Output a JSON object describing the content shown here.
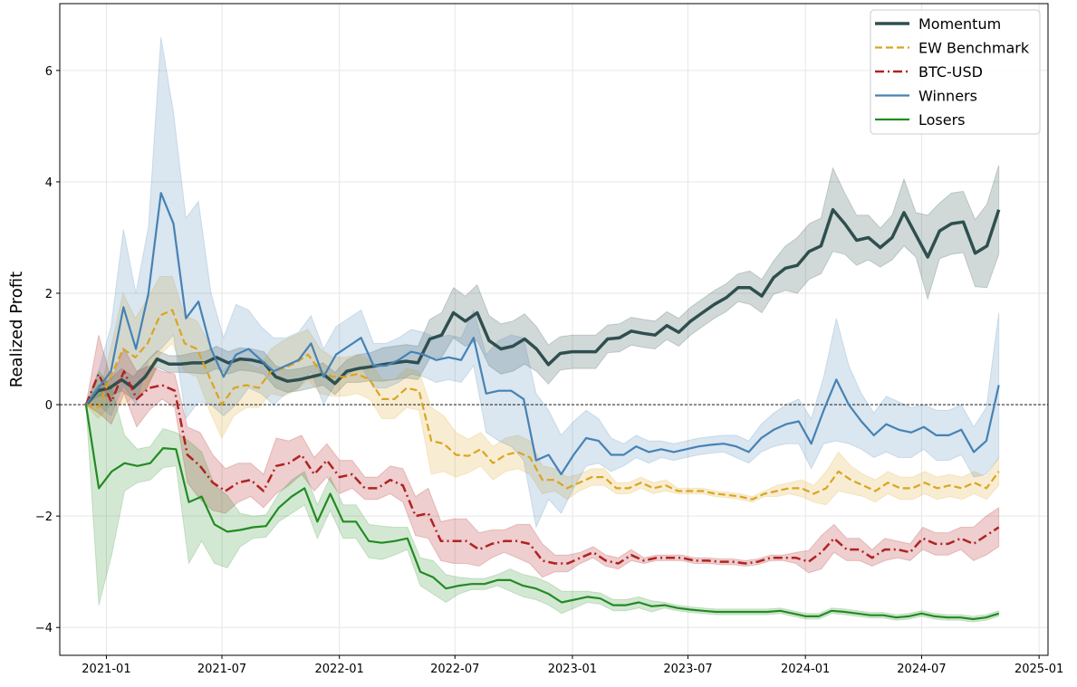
{
  "chart_data": {
    "type": "line",
    "title": "",
    "xlabel": "",
    "ylabel": "Realized Profit",
    "xlim": [
      "2020-10-20",
      "2025-01-15"
    ],
    "ylim": [
      -4.5,
      7.2
    ],
    "grid": true,
    "legend_position": "top-right",
    "x_tick_labels": [
      "2021-01",
      "2021-07",
      "2022-01",
      "2022-07",
      "2023-01",
      "2023-07",
      "2024-01",
      "2024-07",
      "2025-01"
    ],
    "y_tick_values": [
      -4,
      -2,
      0,
      2,
      4,
      6
    ],
    "y_tick_labels": [
      "−4",
      "−2",
      "0",
      "2",
      "4",
      "6"
    ],
    "reference_line": {
      "y": 0,
      "style": "dashed",
      "color": "#000000"
    },
    "x_start": "2020-11-30",
    "x_step_days": 14.12,
    "series": [
      {
        "name": "Momentum",
        "color": "#2f4f4f",
        "style": "solid",
        "width": 3.5,
        "band_opacity": 0.22,
        "values": [
          0,
          0.25,
          0.3,
          0.45,
          0.3,
          0.5,
          0.82,
          0.73,
          0.73,
          0.75,
          0.75,
          0.85,
          0.75,
          0.82,
          0.8,
          0.75,
          0.5,
          0.42,
          0.45,
          0.5,
          0.55,
          0.38,
          0.6,
          0.65,
          0.68,
          0.72,
          0.75,
          0.78,
          0.75,
          1.18,
          1.25,
          1.65,
          1.5,
          1.65,
          1.15,
          1.0,
          1.05,
          1.18,
          1.0,
          0.72,
          0.92,
          0.95,
          0.95,
          0.95,
          1.18,
          1.2,
          1.32,
          1.28,
          1.25,
          1.42,
          1.3,
          1.5,
          1.65,
          1.8,
          1.92,
          2.1,
          2.1,
          1.95,
          2.28,
          2.45,
          2.5,
          2.75,
          2.85,
          3.5,
          3.25,
          2.95,
          3.0,
          2.82,
          3.0,
          3.45,
          3.05,
          2.65,
          3.12,
          3.25,
          3.28,
          2.72,
          2.85,
          3.5
        ],
        "band_width": [
          0,
          0.1,
          0.15,
          0.2,
          0.2,
          0.25,
          0.15,
          0.15,
          0.15,
          0.18,
          0.2,
          0.2,
          0.2,
          0.2,
          0.2,
          0.2,
          0.2,
          0.2,
          0.2,
          0.2,
          0.2,
          0.2,
          0.2,
          0.25,
          0.25,
          0.3,
          0.3,
          0.3,
          0.3,
          0.35,
          0.4,
          0.45,
          0.45,
          0.5,
          0.45,
          0.45,
          0.45,
          0.45,
          0.4,
          0.35,
          0.3,
          0.3,
          0.3,
          0.3,
          0.25,
          0.25,
          0.25,
          0.25,
          0.25,
          0.25,
          0.25,
          0.25,
          0.25,
          0.25,
          0.25,
          0.25,
          0.3,
          0.3,
          0.3,
          0.4,
          0.5,
          0.5,
          0.5,
          0.75,
          0.55,
          0.45,
          0.4,
          0.35,
          0.4,
          0.6,
          0.4,
          0.75,
          0.5,
          0.55,
          0.55,
          0.6,
          0.75,
          0.8
        ]
      },
      {
        "name": "EW Benchmark",
        "color": "#daa520",
        "style": "dashed",
        "width": 2.2,
        "band_opacity": 0.2,
        "values": [
          0,
          -0.05,
          0.5,
          1.0,
          0.85,
          1.1,
          1.6,
          1.7,
          1.1,
          1.0,
          0.5,
          0.0,
          0.3,
          0.35,
          0.3,
          0.6,
          0.65,
          0.75,
          0.9,
          0.6,
          0.5,
          0.5,
          0.55,
          0.45,
          0.1,
          0.1,
          0.3,
          0.25,
          -0.65,
          -0.7,
          -0.9,
          -0.92,
          -0.8,
          -1.05,
          -0.9,
          -0.85,
          -0.95,
          -1.35,
          -1.35,
          -1.5,
          -1.4,
          -1.3,
          -1.3,
          -1.5,
          -1.5,
          -1.4,
          -1.5,
          -1.45,
          -1.55,
          -1.55,
          -1.55,
          -1.6,
          -1.62,
          -1.65,
          -1.7,
          -1.6,
          -1.55,
          -1.5,
          -1.5,
          -1.6,
          -1.5,
          -1.2,
          -1.35,
          -1.45,
          -1.55,
          -1.4,
          -1.5,
          -1.5,
          -1.4,
          -1.5,
          -1.45,
          -1.5,
          -1.4,
          -1.5,
          -1.2
        ],
        "band_width": [
          0,
          0.2,
          0.5,
          1.0,
          0.7,
          0.8,
          0.7,
          0.6,
          0.5,
          0.5,
          0.6,
          0.6,
          0.5,
          0.4,
          0.35,
          0.4,
          0.5,
          0.5,
          0.45,
          0.4,
          0.35,
          0.35,
          0.35,
          0.35,
          0.35,
          0.35,
          0.35,
          0.35,
          0.6,
          0.5,
          0.4,
          0.3,
          0.3,
          0.3,
          0.3,
          0.3,
          0.3,
          0.25,
          0.2,
          0.2,
          0.15,
          0.15,
          0.15,
          0.1,
          0.1,
          0.1,
          0.1,
          0.1,
          0.05,
          0.05,
          0.05,
          0.05,
          0.05,
          0.05,
          0.05,
          0.05,
          0.1,
          0.1,
          0.15,
          0.15,
          0.3,
          0.35,
          0.25,
          0.2,
          0.2,
          0.2,
          0.2,
          0.2,
          0.2,
          0.2,
          0.2,
          0.2,
          0.2,
          0.2,
          0.25
        ]
      },
      {
        "name": "BTC-USD",
        "color": "#b22222",
        "style": "dashdot",
        "width": 2.5,
        "band_opacity": 0.22,
        "values": [
          0,
          0.55,
          0.05,
          0.6,
          0.1,
          0.3,
          0.35,
          0.25,
          -0.9,
          -1.1,
          -1.4,
          -1.55,
          -1.4,
          -1.35,
          -1.55,
          -1.1,
          -1.05,
          -0.9,
          -1.25,
          -1.0,
          -1.3,
          -1.25,
          -1.5,
          -1.5,
          -1.35,
          -1.45,
          -2.0,
          -1.95,
          -2.45,
          -2.45,
          -2.45,
          -2.6,
          -2.5,
          -2.45,
          -2.45,
          -2.5,
          -2.8,
          -2.85,
          -2.85,
          -2.75,
          -2.65,
          -2.8,
          -2.85,
          -2.7,
          -2.8,
          -2.75,
          -2.75,
          -2.75,
          -2.8,
          -2.8,
          -2.82,
          -2.82,
          -2.85,
          -2.82,
          -2.75,
          -2.75,
          -2.75,
          -2.82,
          -2.65,
          -2.4,
          -2.6,
          -2.6,
          -2.75,
          -2.6,
          -2.6,
          -2.65,
          -2.4,
          -2.5,
          -2.5,
          -2.4,
          -2.5,
          -2.35,
          -2.2
        ],
        "band_width": [
          0,
          0.7,
          0.4,
          0.4,
          0.5,
          0.4,
          0.25,
          0.3,
          0.5,
          0.6,
          0.5,
          0.4,
          0.35,
          0.3,
          0.3,
          0.5,
          0.4,
          0.35,
          0.3,
          0.3,
          0.3,
          0.25,
          0.2,
          0.2,
          0.25,
          0.3,
          0.35,
          0.45,
          0.35,
          0.4,
          0.4,
          0.3,
          0.25,
          0.2,
          0.3,
          0.35,
          0.3,
          0.15,
          0.15,
          0.1,
          0.1,
          0.1,
          0.1,
          0.1,
          0.05,
          0.05,
          0.05,
          0.05,
          0.05,
          0.05,
          0.05,
          0.05,
          0.05,
          0.05,
          0.05,
          0.05,
          0.1,
          0.2,
          0.3,
          0.25,
          0.2,
          0.2,
          0.15,
          0.2,
          0.15,
          0.15,
          0.2,
          0.2,
          0.2,
          0.2,
          0.3,
          0.35,
          0.35
        ]
      },
      {
        "name": "Winners",
        "color": "#4682b4",
        "style": "solid",
        "width": 2.2,
        "band_opacity": 0.2,
        "values": [
          0,
          0.3,
          0.6,
          1.75,
          1.0,
          2.0,
          3.8,
          3.25,
          1.55,
          1.85,
          1.0,
          0.5,
          0.9,
          1.0,
          0.8,
          0.6,
          0.7,
          0.8,
          1.1,
          0.5,
          0.9,
          1.05,
          1.2,
          0.7,
          0.7,
          0.8,
          0.95,
          0.9,
          0.8,
          0.85,
          0.8,
          1.2,
          0.2,
          0.25,
          0.25,
          0.1,
          -1.0,
          -0.9,
          -1.25,
          -0.9,
          -0.6,
          -0.65,
          -0.9,
          -0.9,
          -0.75,
          -0.85,
          -0.8,
          -0.85,
          -0.8,
          -0.75,
          -0.72,
          -0.7,
          -0.75,
          -0.85,
          -0.6,
          -0.45,
          -0.35,
          -0.3,
          -0.7,
          -0.1,
          0.45,
          0.0,
          -0.3,
          -0.55,
          -0.35,
          -0.45,
          -0.5,
          -0.4,
          -0.55,
          -0.55,
          -0.45,
          -0.85,
          -0.65,
          0.35
        ],
        "band_width": [
          0,
          0.3,
          0.8,
          1.4,
          1.0,
          1.2,
          2.8,
          2.0,
          1.8,
          1.8,
          1.0,
          0.7,
          0.9,
          0.7,
          0.6,
          0.6,
          0.5,
          0.5,
          0.5,
          0.5,
          0.5,
          0.5,
          0.5,
          0.4,
          0.4,
          0.4,
          0.4,
          0.4,
          0.4,
          0.4,
          0.4,
          0.5,
          0.7,
          0.9,
          1.0,
          1.1,
          1.2,
          0.8,
          0.7,
          0.6,
          0.5,
          0.4,
          0.3,
          0.2,
          0.2,
          0.2,
          0.15,
          0.15,
          0.15,
          0.15,
          0.15,
          0.15,
          0.2,
          0.2,
          0.25,
          0.3,
          0.35,
          0.4,
          0.45,
          0.6,
          1.1,
          0.7,
          0.5,
          0.4,
          0.5,
          0.5,
          0.45,
          0.4,
          0.45,
          0.45,
          0.45,
          0.45,
          0.6,
          1.3
        ]
      },
      {
        "name": "Losers",
        "color": "#228b22",
        "style": "solid",
        "width": 2.2,
        "band_opacity": 0.2,
        "values": [
          0,
          -1.5,
          -1.2,
          -1.05,
          -1.1,
          -1.05,
          -0.78,
          -0.8,
          -1.75,
          -1.65,
          -2.15,
          -2.28,
          -2.25,
          -2.2,
          -2.18,
          -1.85,
          -1.65,
          -1.5,
          -2.1,
          -1.6,
          -2.1,
          -2.1,
          -2.45,
          -2.48,
          -2.45,
          -2.4,
          -3.0,
          -3.1,
          -3.3,
          -3.25,
          -3.22,
          -3.22,
          -3.15,
          -3.15,
          -3.25,
          -3.3,
          -3.4,
          -3.55,
          -3.5,
          -3.45,
          -3.48,
          -3.6,
          -3.6,
          -3.55,
          -3.62,
          -3.6,
          -3.65,
          -3.68,
          -3.7,
          -3.72,
          -3.72,
          -3.72,
          -3.72,
          -3.72,
          -3.7,
          -3.75,
          -3.8,
          -3.8,
          -3.7,
          -3.72,
          -3.75,
          -3.78,
          -3.78,
          -3.82,
          -3.8,
          -3.75,
          -3.8,
          -3.82,
          -3.82,
          -3.85,
          -3.82,
          -3.75
        ],
        "band_width": [
          0,
          2.1,
          1.5,
          0.5,
          0.3,
          0.3,
          0.35,
          0.3,
          1.1,
          0.8,
          0.7,
          0.65,
          0.3,
          0.2,
          0.2,
          0.25,
          0.3,
          0.3,
          0.3,
          0.3,
          0.3,
          0.3,
          0.3,
          0.3,
          0.25,
          0.2,
          0.25,
          0.3,
          0.25,
          0.15,
          0.1,
          0.1,
          0.1,
          0.2,
          0.2,
          0.2,
          0.2,
          0.2,
          0.15,
          0.1,
          0.1,
          0.1,
          0.1,
          0.1,
          0.1,
          0.05,
          0.05,
          0.05,
          0.05,
          0.05,
          0.05,
          0.05,
          0.05,
          0.05,
          0.05,
          0.05,
          0.05,
          0.05,
          0.05,
          0.05,
          0.05,
          0.05,
          0.05,
          0.05,
          0.05,
          0.05,
          0.05,
          0.05,
          0.05,
          0.05,
          0.05,
          0.05
        ]
      }
    ]
  }
}
